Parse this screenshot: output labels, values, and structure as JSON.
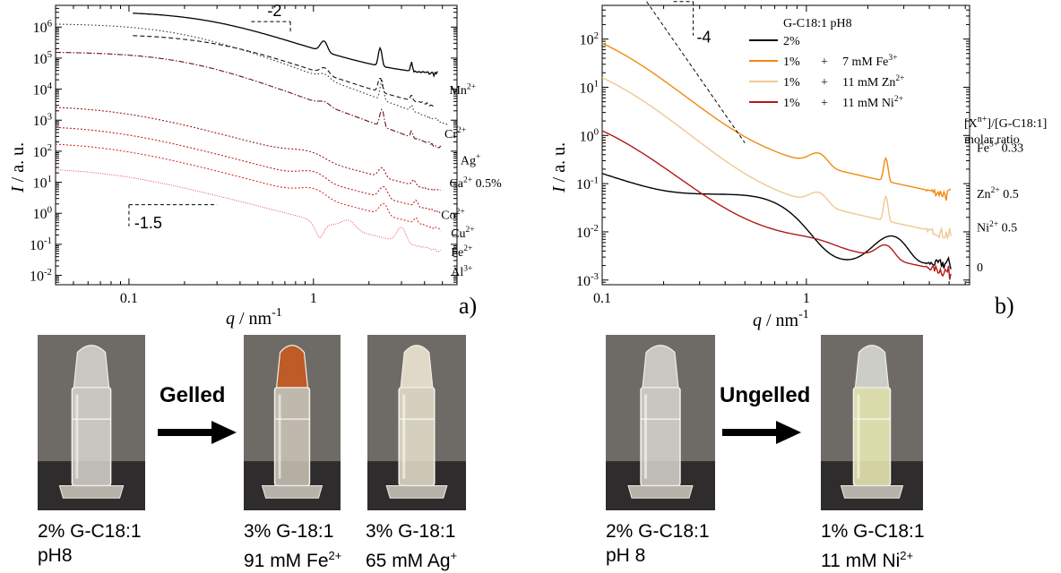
{
  "chart_data": [
    {
      "type": "line",
      "panel_label": "a)",
      "xscale": "log",
      "yscale": "log",
      "xlim": [
        0.04,
        6
      ],
      "ylim": [
        0.005,
        5000000
      ],
      "xticks": [
        "0.1",
        "1"
      ],
      "yticks": [
        "10^-2",
        "10^-1",
        "10^0",
        "10^1",
        "10^2",
        "10^3",
        "10^4",
        "10^5",
        "10^6"
      ],
      "xlabel_var": "q",
      "xlabel_unit": "nm",
      "xlabel_exp": "-1",
      "ylabel_var": "I",
      "ylabel_unit": "a. u.",
      "guides": [
        {
          "label": "-2",
          "x0": 0.46,
          "y0": 1500000,
          "x1": 0.75,
          "y1": 600000
        },
        {
          "label": "-1.5",
          "x0": 0.1,
          "y0": 1.9,
          "x1": 0.3,
          "y1": 0.38
        }
      ],
      "series": [
        {
          "name": "Mn2+",
          "label_base": "Mn",
          "label_sup": "2+",
          "color": "#000000",
          "dash": "",
          "width": 1.3,
          "q0": 0.105,
          "A": 3200000,
          "qc": 0.28,
          "m": 2.2,
          "floor": 0.0,
          "bg": 25000,
          "peaks": [
            [
              1.14,
              0.06,
              1.2
            ],
            [
              2.3,
              0.06,
              2.8
            ],
            [
              3.4,
              0.05,
              1.0
            ]
          ],
          "noise": 0.08,
          "label_q": 5.1,
          "label_y": 9000
        },
        {
          "name": "Cr2+",
          "label_base": "Cr",
          "label_sup": "2+",
          "color": "#111111",
          "dash": "5,3",
          "width": 1.1,
          "q0": 0.105,
          "A": 600000,
          "qc": 0.3,
          "m": 2.2,
          "floor": 0.0,
          "bg": 1500,
          "peaks": [
            [
              1.15,
              0.08,
              0.6
            ],
            [
              2.3,
              0.07,
              1.8
            ],
            [
              3.4,
              0.06,
              0.5
            ]
          ],
          "noise": 0.08,
          "label_q": 4.8,
          "label_y": 350
        },
        {
          "name": "Ag+",
          "label_base": "Ag",
          "label_sup": "+",
          "color": "#333333",
          "dash": "1.5,2.5",
          "width": 1.1,
          "q0": 0.04,
          "A": 1300000,
          "qc": 0.19,
          "m": 2.25,
          "floor": 0.0,
          "bg": 60,
          "peaks": [
            [
              1.15,
              0.1,
              0.4
            ],
            [
              2.35,
              0.06,
              3.0
            ],
            [
              3.4,
              0.06,
              0.6
            ]
          ],
          "noise": 0.06,
          "label_q": 5.6,
          "label_y": 50
        },
        {
          "name": "Ca2+ 0.5%",
          "label_base": "Ca",
          "label_sup": "2+",
          "label_tail": " 0.5%",
          "color": "#6b1010",
          "dash": "6,2,1.5,2",
          "width": 1.1,
          "q0": 0.04,
          "A": 160000,
          "qc": 0.2,
          "m": 2.25,
          "floor": 0.0,
          "bg": 12,
          "peaks": [
            [
              1.15,
              0.1,
              0.3
            ],
            [
              2.35,
              0.07,
              2.5
            ],
            [
              3.4,
              0.06,
              0.6
            ]
          ],
          "noise": 0.07,
          "label_q": 5.1,
          "label_y": 9
        },
        {
          "name": "Co2+",
          "label_base": "Co",
          "label_sup": "2+",
          "color": "#a01818",
          "dash": "2,2",
          "width": 1.1,
          "q0": 0.04,
          "A": 3000,
          "qc": 0.09,
          "m": 1.65,
          "floor": 0.0,
          "bg": 0.9,
          "peaks": [
            [
              0.95,
              0.25,
              0.6
            ],
            [
              2.35,
              0.12,
              1.0
            ],
            [
              3.5,
              0.1,
              0.5
            ]
          ],
          "noise": 0.04,
          "label_q": 4.6,
          "label_y": 0.85
        },
        {
          "name": "Cu2+",
          "label_base": "Cu",
          "label_sup": "2+",
          "color": "#c02020",
          "dash": "2,2",
          "width": 1.1,
          "q0": 0.04,
          "A": 700,
          "qc": 0.08,
          "m": 1.6,
          "floor": 0.0,
          "bg": 0.12,
          "peaks": [
            [
              1.0,
              0.2,
              0.8
            ],
            [
              2.4,
              0.15,
              1.3
            ],
            [
              3.6,
              0.1,
              0.6
            ]
          ],
          "noise": 0.04,
          "label_q": 5.2,
          "label_y": 0.22
        },
        {
          "name": "Fe2+",
          "label_base": "Fe",
          "label_sup": "2+",
          "color": "#d83030",
          "dash": "2,2",
          "width": 1.1,
          "q0": 0.04,
          "A": 200,
          "qc": 0.08,
          "m": 1.6,
          "floor": 0.0,
          "bg": 0.03,
          "peaks": [
            [
              1.0,
              0.2,
              0.8
            ],
            [
              2.4,
              0.15,
              1.3
            ],
            [
              3.6,
              0.1,
              0.5
            ]
          ],
          "noise": 0.04,
          "label_q": 5.2,
          "label_y": 0.055
        },
        {
          "name": "Al3+",
          "label_base": "Al",
          "label_sup": "3+",
          "color": "#e85050",
          "dash": "1,1.5",
          "width": 1.0,
          "q0": 0.04,
          "A": 30,
          "qc": 0.08,
          "m": 1.55,
          "floor": 0.0,
          "bg": 0.008,
          "peaks": [
            [
              1.55,
              0.17,
              0.9
            ],
            [
              3.0,
              0.2,
              2.0
            ]
          ],
          "dip": [
            1.08,
            0.1,
            0.7
          ],
          "noise": 0.04,
          "label_q": 5.2,
          "label_y": 0.0125
        }
      ]
    },
    {
      "type": "line",
      "panel_label": "b)",
      "xscale": "log",
      "yscale": "log",
      "xlim": [
        0.1,
        6.3
      ],
      "ylim": [
        0.0008,
        500
      ],
      "xticks": [
        "0.1",
        "1"
      ],
      "yticks": [
        "10^-3",
        "10^-2",
        "10^-1",
        "10^0",
        "10^1",
        "10^2"
      ],
      "xlabel_var": "q",
      "xlabel_unit": "nm",
      "xlabel_exp": "-1",
      "ylabel_var": "I",
      "ylabel_unit": "a. u.",
      "legend_title": "G-C18:1    pH8",
      "ratio_title": "[X^n+]/[G-C18:1]",
      "ratio_title_2": "molar ratio",
      "guides": [
        {
          "label": "-4",
          "x0": 0.165,
          "y0": 600,
          "x1": 0.5,
          "y1": 0.7
        }
      ],
      "series": [
        {
          "name": "2%",
          "legend": [
            "2%",
            "",
            ""
          ],
          "color": "#000000",
          "width": 1.4,
          "ratio_base": "",
          "ratio_sup": "",
          "ratio_tail": "0",
          "kind": "gel",
          "label_y": 0.0018
        },
        {
          "name": "1% + 7 mM Fe3+",
          "legend": [
            "1%",
            "+",
            "7 mM Fe"
          ],
          "legend_sup": "3+",
          "color": "#f08a10",
          "width": 1.4,
          "ratio_base": "Fe",
          "ratio_sup": "3+",
          "ratio_tail": " 0.33",
          "kind": "ion",
          "A": 320,
          "scale": 1.0,
          "bg": 1.0,
          "peaks": [
            [
              1.15,
              0.15,
              0.8
            ],
            [
              2.45,
              0.07,
              2.0
            ]
          ],
          "label_y": 0.55
        },
        {
          "name": "1% + 11 mM Zn2+",
          "legend": [
            "1%",
            "+",
            "11 mM Zn"
          ],
          "legend_sup": "2+",
          "color": "#f0c890",
          "width": 1.4,
          "ratio_base": "Zn",
          "ratio_sup": "2+",
          "ratio_tail": " 0.5",
          "kind": "ion",
          "A": 62,
          "scale": 0.2,
          "bg": 0.15,
          "peaks": [
            [
              1.15,
              0.15,
              0.8
            ],
            [
              2.45,
              0.07,
              2.2
            ]
          ],
          "label_y": 0.06
        },
        {
          "name": "1% + 11 mM Ni2+",
          "legend": [
            "1%",
            "+",
            "11 mM Ni"
          ],
          "legend_sup": "2+",
          "color": "#b01818",
          "width": 1.4,
          "ratio_base": "Ni",
          "ratio_sup": "2+",
          "ratio_tail": " 0.5",
          "kind": "ion",
          "A": 4.8,
          "scale": 0.02,
          "bg": 0.025,
          "peaks": [
            [
              1.1,
              0.35,
              0.2
            ],
            [
              2.45,
              0.3,
              0.9
            ]
          ],
          "label_y": 0.012
        }
      ]
    }
  ],
  "photos": [
    {
      "caption_1": "2% G-C18:1",
      "caption_2": "pH8",
      "tint": "#d8d6d0",
      "cap_tint": "#d4d2cc"
    },
    {
      "caption_1": "3% G-18:1",
      "caption_2": "91 mM Fe",
      "caption_2_sup": "2+",
      "tint": "#cdc7b8",
      "cap_tint": "#c85a20"
    },
    {
      "caption_1": "3% G-18:1",
      "caption_2": "65 mM Ag",
      "caption_2_sup": "+",
      "tint": "#e8e2cc",
      "cap_tint": "#ece6d2"
    },
    {
      "caption_1": "2% G-C18:1",
      "caption_2": "pH 8",
      "tint": "#d8d6d0",
      "cap_tint": "#d4d2cc"
    },
    {
      "caption_1": "1% G-C18:1",
      "caption_2": "11 mM Ni",
      "caption_2_sup": "2+",
      "tint": "#eef0b8",
      "cap_tint": "#d6d8d2"
    }
  ],
  "arrows": [
    {
      "label": "Gelled"
    },
    {
      "label": "Ungelled"
    }
  ]
}
